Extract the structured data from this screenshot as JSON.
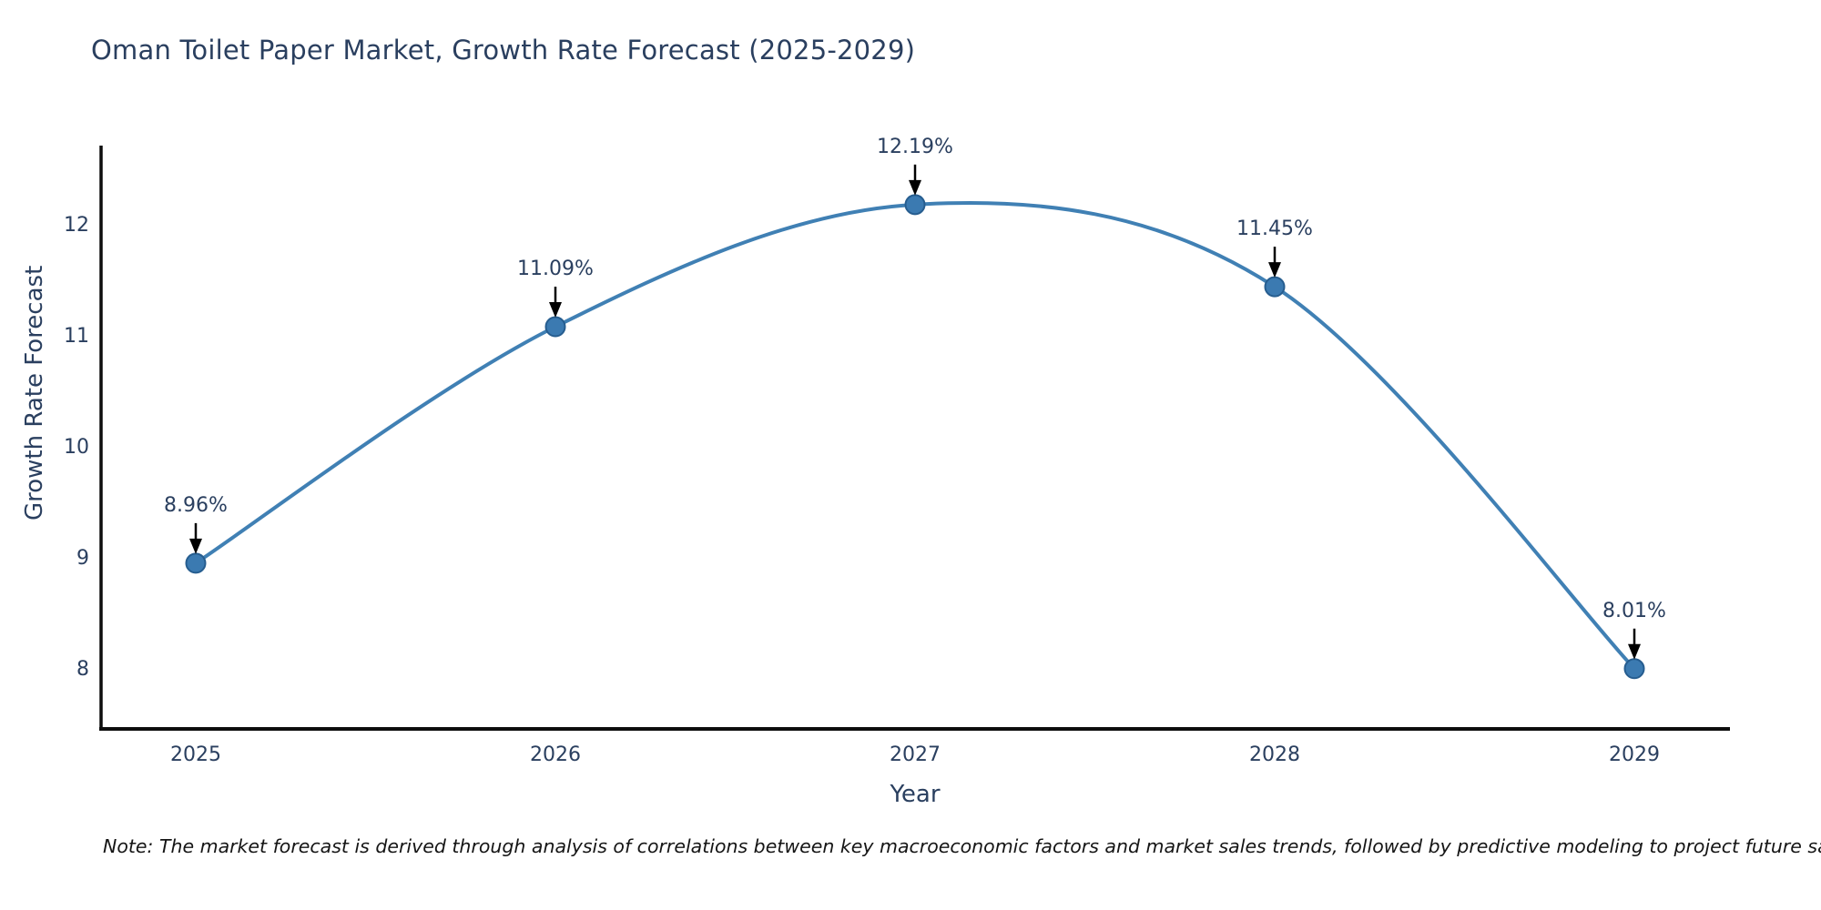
{
  "title": "Oman Toilet Paper Market, Growth Rate Forecast (2025-2029)",
  "note": "Note: The market forecast is derived through analysis of correlations between key macroeconomic factors and market sales trends, followed by predictive modeling to project future sales",
  "chart_data": {
    "type": "line",
    "title": "Oman Toilet Paper Market, Growth Rate Forecast (2025-2029)",
    "xlabel": "Year",
    "ylabel": "Growth Rate Forecast",
    "x": [
      2025,
      2026,
      2027,
      2028,
      2029
    ],
    "series": [
      {
        "name": "Growth Rate Forecast",
        "values": [
          8.96,
          11.09,
          12.19,
          11.45,
          8.01
        ],
        "point_labels": [
          "8.96%",
          "11.09%",
          "12.19%",
          "11.45%",
          "8.01%"
        ]
      }
    ],
    "y_ticks": [
      8,
      9,
      10,
      11,
      12
    ],
    "ylim": [
      7.45,
      12.72
    ],
    "line_shape": "spline",
    "grid": false,
    "legend_position": "none",
    "colors": {
      "line": "#4080b4",
      "marker_fill": "#3b7ab1",
      "marker_edge": "#265d8f",
      "text": "#2a3f5f",
      "axis_line": "#0d0d0d",
      "annotation_arrow": "#000000",
      "background": "#ffffff"
    }
  }
}
